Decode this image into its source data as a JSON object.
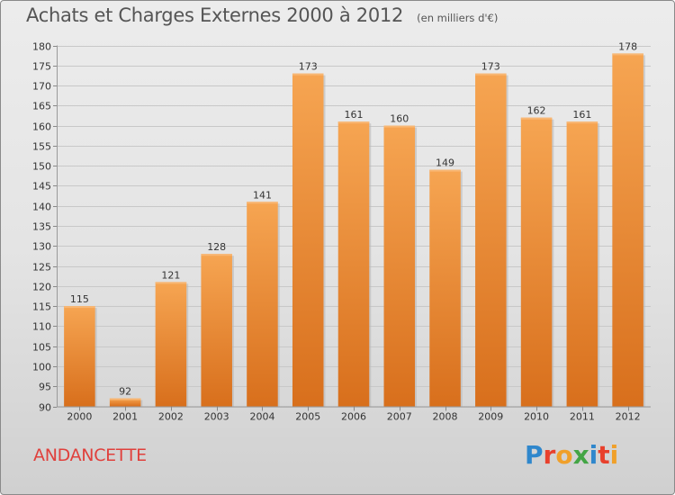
{
  "header": {
    "title": "Achats et Charges Externes 2000 à 2012",
    "subtitle": "(en milliers d'€)"
  },
  "footer": {
    "town": "ANDANCETTE",
    "logo_text": "Proxiti",
    "logo_letters": [
      {
        "ch": "P",
        "color": "#2f87cc"
      },
      {
        "ch": "r",
        "color": "#e8402c"
      },
      {
        "ch": "o",
        "color": "#f0a02a"
      },
      {
        "ch": "x",
        "color": "#43a545"
      },
      {
        "ch": "i",
        "color": "#2f87cc"
      },
      {
        "ch": "t",
        "color": "#e8402c"
      },
      {
        "ch": "i",
        "color": "#f0a02a"
      }
    ]
  },
  "colors": {
    "bar_light": "#f6a552",
    "bar_dark": "#d86f1c",
    "grid": "#c8c8c8",
    "axis_text": "#333333",
    "label_text": "#333333"
  },
  "chart_data": {
    "type": "bar",
    "title": "Achats et Charges Externes 2000 à 2012",
    "subtitle": "(en milliers d'€)",
    "categories": [
      "2000",
      "2001",
      "2002",
      "2003",
      "2004",
      "2005",
      "2006",
      "2007",
      "2008",
      "2009",
      "2010",
      "2011",
      "2012"
    ],
    "values": [
      115,
      92,
      121,
      128,
      141,
      173,
      161,
      160,
      149,
      173,
      162,
      161,
      178
    ],
    "ylim": [
      90,
      180
    ],
    "yticks": [
      90,
      95,
      100,
      105,
      110,
      115,
      120,
      125,
      130,
      135,
      140,
      145,
      150,
      155,
      160,
      165,
      170,
      175,
      180
    ],
    "grid": true,
    "xlabel": "",
    "ylabel": ""
  }
}
